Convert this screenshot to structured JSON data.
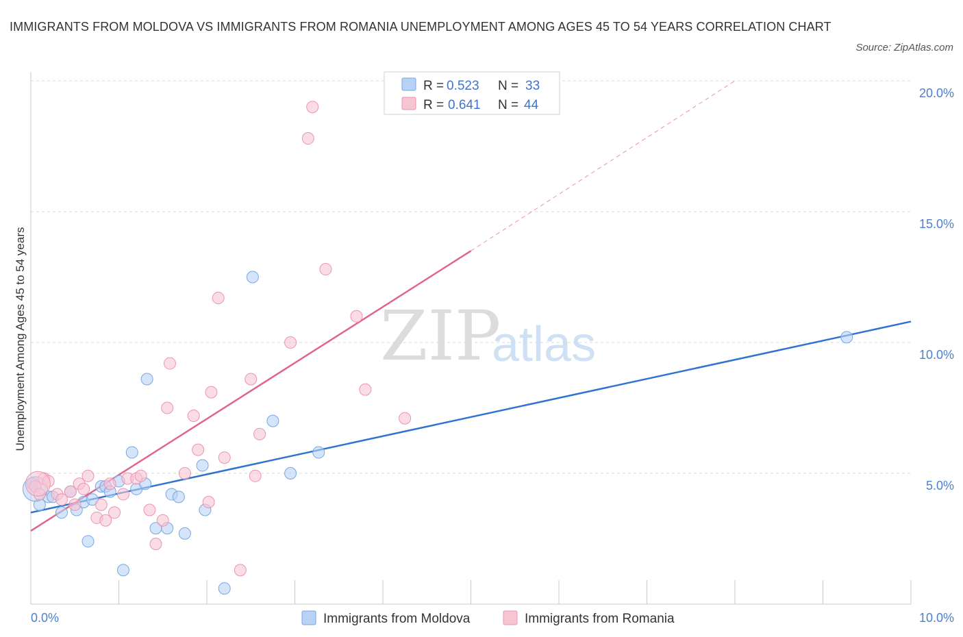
{
  "title": "IMMIGRANTS FROM MOLDOVA VS IMMIGRANTS FROM ROMANIA UNEMPLOYMENT AMONG AGES 45 TO 54 YEARS CORRELATION CHART",
  "source": "Source: ZipAtlas.com",
  "watermark": {
    "zip": "ZIP",
    "atlas": "atlas"
  },
  "colors": {
    "moldova_fill": "#b7d2f5",
    "moldova_stroke": "#7aa6e0",
    "moldova_line": "#2f73d0",
    "romania_fill": "#f7c4d3",
    "romania_stroke": "#eb94b0",
    "romania_line": "#e0648f",
    "grid": "#d8d8d8",
    "axis": "#c8c8c8"
  },
  "legend": {
    "rows": [
      {
        "r_label": "R =",
        "r_value": "0.523",
        "n_label": "N =",
        "n_value": "33"
      },
      {
        "r_label": "R =",
        "r_value": "0.641",
        "n_label": "N =",
        "n_value": "44"
      }
    ]
  },
  "chart_data": {
    "type": "scatter",
    "title": "IMMIGRANTS FROM MOLDOVA VS IMMIGRANTS FROM ROMANIA UNEMPLOYMENT AMONG AGES 45 TO 54 YEARS CORRELATION CHART",
    "xlabel": "",
    "ylabel": "Unemployment Among Ages 45 to 54 years",
    "xlim": [
      0,
      10
    ],
    "ylim": [
      0,
      20
    ],
    "x_tick_labels": [
      "0.0%",
      "10.0%"
    ],
    "y_ticks": [
      5,
      10,
      15,
      20
    ],
    "y_tick_labels": [
      "5.0%",
      "10.0%",
      "15.0%",
      "20.0%"
    ],
    "grid": true,
    "legend_position": "top-center",
    "series": [
      {
        "name": "Immigrants from Moldova",
        "r": 0.523,
        "n": 33,
        "trend": {
          "x0": 0,
          "y0": 3.5,
          "x1": 10,
          "y1": 10.8,
          "dashed_to": null
        },
        "points": [
          [
            0.02,
            4.6
          ],
          [
            0.1,
            3.8
          ],
          [
            0.2,
            4.1
          ],
          [
            0.25,
            4.1
          ],
          [
            0.35,
            3.5
          ],
          [
            0.45,
            4.3
          ],
          [
            0.52,
            3.6
          ],
          [
            0.6,
            3.9
          ],
          [
            0.65,
            2.4
          ],
          [
            0.7,
            4.0
          ],
          [
            0.8,
            4.5
          ],
          [
            0.85,
            4.5
          ],
          [
            0.9,
            4.3
          ],
          [
            1.0,
            4.7
          ],
          [
            1.05,
            1.3
          ],
          [
            1.15,
            5.8
          ],
          [
            1.2,
            4.4
          ],
          [
            1.3,
            4.6
          ],
          [
            1.32,
            8.6
          ],
          [
            1.42,
            2.9
          ],
          [
            1.55,
            2.9
          ],
          [
            1.6,
            4.2
          ],
          [
            1.68,
            4.1
          ],
          [
            1.75,
            2.7
          ],
          [
            1.95,
            5.3
          ],
          [
            1.98,
            3.6
          ],
          [
            2.2,
            0.6
          ],
          [
            2.52,
            12.5
          ],
          [
            2.75,
            7.0
          ],
          [
            2.95,
            5.0
          ],
          [
            3.27,
            5.8
          ],
          [
            9.27,
            10.2
          ],
          [
            0.05,
            4.4
          ]
        ]
      },
      {
        "name": "Immigrants from Romania",
        "r": 0.641,
        "n": 44,
        "trend": {
          "x0": 0,
          "y0": 2.8,
          "x1": 5.0,
          "y1": 13.5,
          "dashed_to": {
            "x": 8.0,
            "y": 20.0
          }
        },
        "points": [
          [
            0.05,
            4.5
          ],
          [
            0.1,
            4.2
          ],
          [
            0.15,
            4.8
          ],
          [
            0.2,
            4.7
          ],
          [
            0.3,
            4.2
          ],
          [
            0.35,
            4.0
          ],
          [
            0.45,
            4.3
          ],
          [
            0.5,
            3.8
          ],
          [
            0.55,
            4.6
          ],
          [
            0.6,
            4.4
          ],
          [
            0.65,
            4.9
          ],
          [
            0.75,
            3.3
          ],
          [
            0.8,
            3.8
          ],
          [
            0.85,
            3.2
          ],
          [
            0.9,
            4.6
          ],
          [
            0.95,
            3.5
          ],
          [
            1.05,
            4.2
          ],
          [
            1.1,
            4.8
          ],
          [
            1.2,
            4.8
          ],
          [
            1.25,
            4.9
          ],
          [
            1.35,
            3.6
          ],
          [
            1.42,
            2.3
          ],
          [
            1.5,
            3.2
          ],
          [
            1.55,
            7.5
          ],
          [
            1.58,
            9.2
          ],
          [
            1.75,
            5.0
          ],
          [
            1.85,
            7.2
          ],
          [
            1.9,
            5.9
          ],
          [
            2.02,
            3.9
          ],
          [
            2.05,
            8.1
          ],
          [
            2.13,
            11.7
          ],
          [
            2.2,
            5.6
          ],
          [
            2.38,
            1.3
          ],
          [
            2.5,
            8.6
          ],
          [
            2.55,
            4.9
          ],
          [
            2.6,
            6.5
          ],
          [
            2.95,
            10.0
          ],
          [
            3.15,
            17.8
          ],
          [
            3.2,
            19.0
          ],
          [
            3.35,
            12.8
          ],
          [
            3.7,
            11.0
          ],
          [
            3.8,
            8.2
          ],
          [
            4.25,
            7.1
          ],
          [
            0.08,
            4.6
          ]
        ]
      }
    ]
  },
  "bottom_legend": [
    {
      "label": "Immigrants from Moldova"
    },
    {
      "label": "Immigrants from Romania"
    }
  ]
}
